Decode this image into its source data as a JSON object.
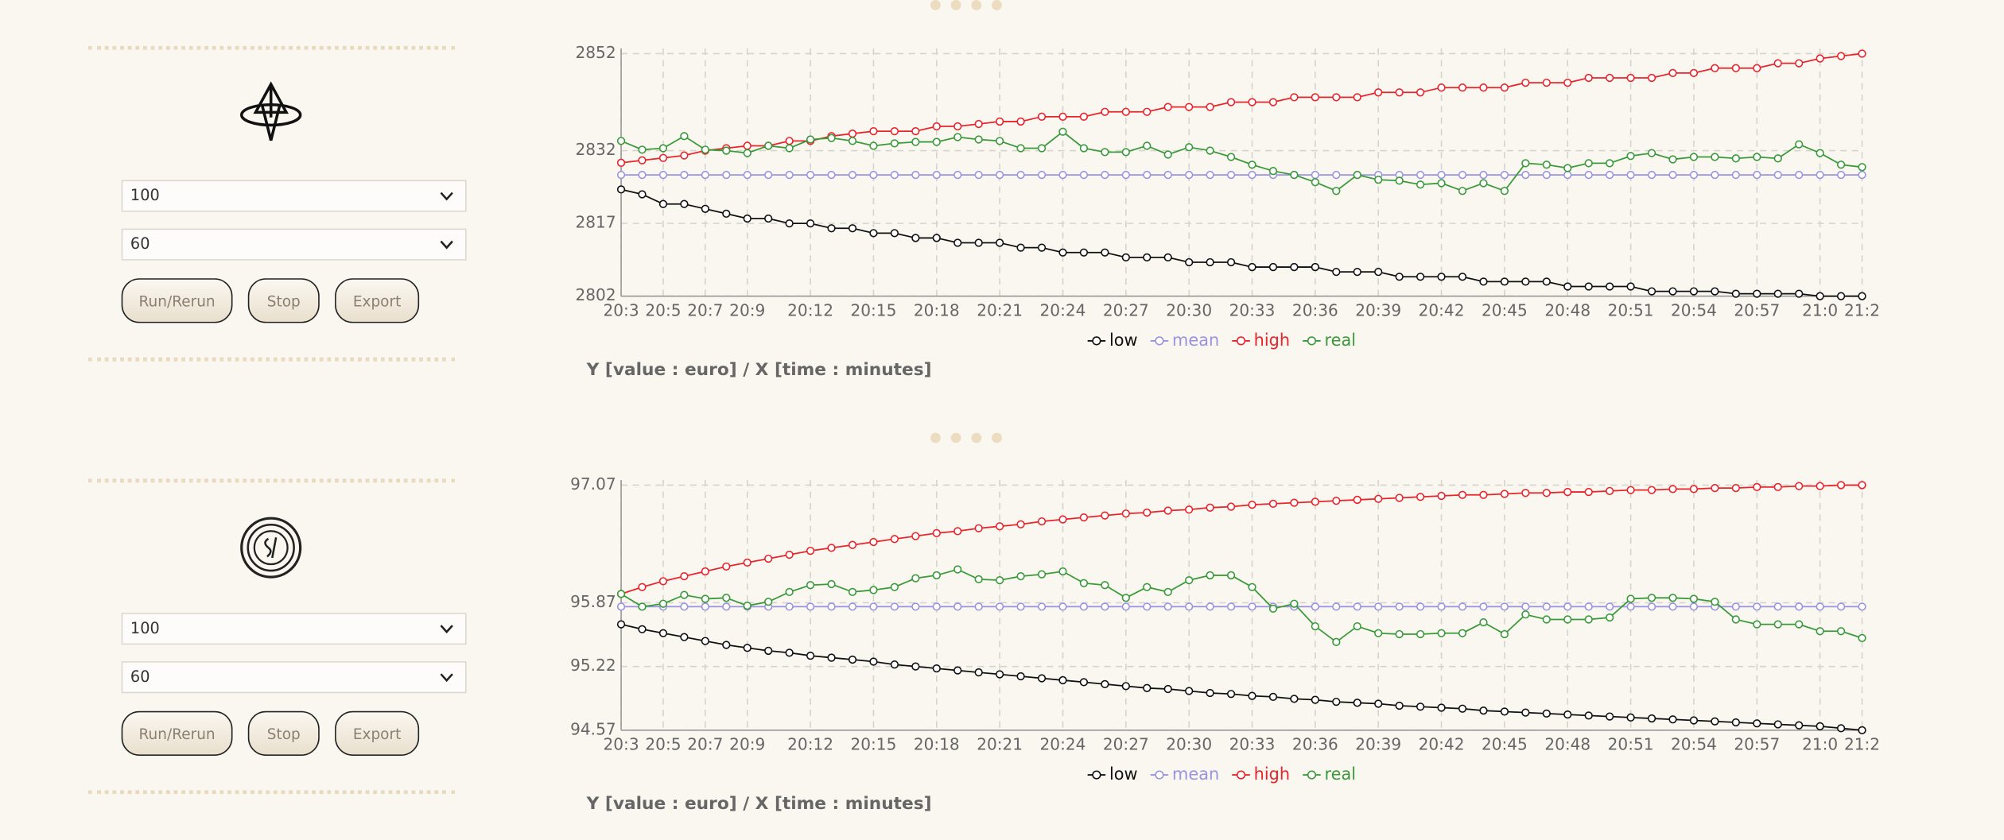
{
  "panels": [
    {
      "controls": {
        "select_1": "100",
        "select_2": "60",
        "buttons": [
          "Run/Rerun",
          "Stop",
          "Export"
        ]
      }
    },
    {
      "controls": {
        "select_1": "100",
        "select_2": "60",
        "buttons": [
          "Run/Rerun",
          "Stop",
          "Export"
        ]
      }
    }
  ],
  "chart_data": [
    {
      "type": "line",
      "categories": [
        "20:3",
        null,
        "20:5",
        null,
        "20:7",
        null,
        "20:9",
        null,
        null,
        "20:12",
        null,
        null,
        "20:15",
        null,
        null,
        "20:18",
        null,
        null,
        "20:21",
        null,
        null,
        "20:24",
        null,
        null,
        "20:27",
        null,
        null,
        "20:30",
        null,
        null,
        "20:33",
        null,
        null,
        "20:36",
        null,
        null,
        "20:39",
        null,
        null,
        "20:42",
        null,
        null,
        "20:45",
        null,
        null,
        "20:48",
        null,
        null,
        "20:51",
        null,
        null,
        "20:54",
        null,
        null,
        "20:57",
        null,
        null,
        "21:0",
        null,
        "21:2"
      ],
      "series": [
        {
          "name": "low",
          "color": "#111111",
          "values": [
            2824,
            2823,
            2821,
            2821,
            2820,
            2819,
            2818,
            2818,
            2817,
            2817,
            2816,
            2816,
            2815,
            2815,
            2814,
            2814,
            2813,
            2813,
            2813,
            2812,
            2812,
            2811,
            2811,
            2811,
            2810,
            2810,
            2810,
            2809,
            2809,
            2809,
            2808,
            2808,
            2808,
            2808,
            2807,
            2807,
            2807,
            2806,
            2806,
            2806,
            2806,
            2805,
            2805,
            2805,
            2805,
            2804,
            2804,
            2804,
            2804,
            2803,
            2803,
            2803,
            2803,
            2802.5,
            2802.5,
            2802.5,
            2802.5,
            2802,
            2802,
            2802
          ]
        },
        {
          "name": "mean",
          "color": "#9a93e0",
          "values": [
            2827,
            2827,
            2827,
            2827,
            2827,
            2827,
            2827,
            2827,
            2827,
            2827,
            2827,
            2827,
            2827,
            2827,
            2827,
            2827,
            2827,
            2827,
            2827,
            2827,
            2827,
            2827,
            2827,
            2827,
            2827,
            2827,
            2827,
            2827,
            2827,
            2827,
            2827,
            2827,
            2827,
            2827,
            2827,
            2827,
            2827,
            2827,
            2827,
            2827,
            2827,
            2827,
            2827,
            2827,
            2827,
            2827,
            2827,
            2827,
            2827,
            2827,
            2827,
            2827,
            2827,
            2827,
            2827,
            2827,
            2827,
            2827,
            2827,
            2827
          ]
        },
        {
          "name": "high",
          "color": "#e8252b",
          "values": [
            2829.5,
            2830,
            2830.5,
            2831,
            2832,
            2832.5,
            2833,
            2833,
            2834,
            2834,
            2835,
            2835.5,
            2836,
            2836,
            2836,
            2837,
            2837,
            2837.5,
            2838,
            2838,
            2839,
            2839,
            2839,
            2840,
            2840,
            2840,
            2841,
            2841,
            2841,
            2842,
            2842,
            2842,
            2843,
            2843,
            2843,
            2843,
            2844,
            2844,
            2844,
            2845,
            2845,
            2845,
            2845,
            2846,
            2846,
            2846,
            2847,
            2847,
            2847,
            2847,
            2848,
            2848,
            2849,
            2849,
            2849,
            2850,
            2850,
            2851,
            2851.5,
            2852
          ]
        },
        {
          "name": "real",
          "color": "#3a9a3a",
          "values": [
            2834,
            2832.2,
            2832.5,
            2835,
            2832.2,
            2832,
            2831.5,
            2833,
            2832.5,
            2834.3,
            2834.6,
            2834,
            2833,
            2833.5,
            2833.8,
            2833.8,
            2834.8,
            2834.3,
            2834,
            2832.5,
            2832.5,
            2835.9,
            2832.5,
            2831.7,
            2831.7,
            2833,
            2831.2,
            2832.7,
            2832,
            2830.7,
            2829.1,
            2827.8,
            2827,
            2825.5,
            2823.7,
            2827,
            2826,
            2825.8,
            2825,
            2825.3,
            2823.7,
            2825.3,
            2823.7,
            2829.4,
            2829.1,
            2828.4,
            2829.4,
            2829.4,
            2830.9,
            2831.5,
            2830.2,
            2830.7,
            2830.7,
            2830.4,
            2830.7,
            2830.4,
            2833.3,
            2831.5,
            2829.1,
            2828.6
          ]
        }
      ],
      "ylim": [
        2802,
        2852
      ],
      "yticks": [
        2802,
        2817,
        2832,
        2852
      ],
      "grid": true,
      "legend": "bottom",
      "caption": "Y [value : euro] / X [time : minutes]"
    },
    {
      "type": "line",
      "categories": [
        "20:3",
        null,
        "20:5",
        null,
        "20:7",
        null,
        "20:9",
        null,
        null,
        "20:12",
        null,
        null,
        "20:15",
        null,
        null,
        "20:18",
        null,
        null,
        "20:21",
        null,
        null,
        "20:24",
        null,
        null,
        "20:27",
        null,
        null,
        "20:30",
        null,
        null,
        "20:33",
        null,
        null,
        "20:36",
        null,
        null,
        "20:39",
        null,
        null,
        "20:42",
        null,
        null,
        "20:45",
        null,
        null,
        "20:48",
        null,
        null,
        "20:51",
        null,
        null,
        "20:54",
        null,
        null,
        "20:57",
        null,
        null,
        "21:0",
        null,
        "21:2"
      ],
      "series": [
        {
          "name": "low",
          "color": "#111111",
          "values": [
            95.65,
            95.6,
            95.56,
            95.52,
            95.48,
            95.44,
            95.41,
            95.38,
            95.36,
            95.33,
            95.31,
            95.29,
            95.27,
            95.24,
            95.22,
            95.2,
            95.18,
            95.16,
            95.14,
            95.12,
            95.1,
            95.08,
            95.06,
            95.04,
            95.02,
            95.0,
            94.99,
            94.97,
            94.95,
            94.94,
            94.92,
            94.91,
            94.89,
            94.88,
            94.86,
            94.85,
            94.84,
            94.82,
            94.81,
            94.8,
            94.79,
            94.77,
            94.76,
            94.75,
            94.74,
            94.73,
            94.72,
            94.71,
            94.7,
            94.69,
            94.68,
            94.67,
            94.66,
            94.65,
            94.64,
            94.63,
            94.62,
            94.61,
            94.59,
            94.57
          ]
        },
        {
          "name": "mean",
          "color": "#9a93e0",
          "values": [
            95.83,
            95.83,
            95.83,
            95.83,
            95.83,
            95.83,
            95.83,
            95.83,
            95.83,
            95.83,
            95.83,
            95.83,
            95.83,
            95.83,
            95.83,
            95.83,
            95.83,
            95.83,
            95.83,
            95.83,
            95.83,
            95.83,
            95.83,
            95.83,
            95.83,
            95.83,
            95.83,
            95.83,
            95.83,
            95.83,
            95.83,
            95.83,
            95.83,
            95.83,
            95.83,
            95.83,
            95.83,
            95.83,
            95.83,
            95.83,
            95.83,
            95.83,
            95.83,
            95.83,
            95.83,
            95.83,
            95.83,
            95.83,
            95.83,
            95.83,
            95.83,
            95.83,
            95.83,
            95.83,
            95.83,
            95.83,
            95.83,
            95.83,
            95.83,
            95.83
          ]
        },
        {
          "name": "high",
          "color": "#e8252b",
          "values": [
            95.96,
            96.03,
            96.09,
            96.14,
            96.19,
            96.24,
            96.28,
            96.32,
            96.36,
            96.4,
            96.43,
            96.46,
            96.49,
            96.52,
            96.55,
            96.58,
            96.6,
            96.63,
            96.65,
            96.67,
            96.7,
            96.72,
            96.74,
            96.76,
            96.78,
            96.79,
            96.81,
            96.82,
            96.84,
            96.85,
            96.87,
            96.88,
            96.89,
            96.9,
            96.91,
            96.92,
            96.93,
            96.94,
            96.95,
            96.96,
            96.97,
            96.97,
            96.98,
            96.99,
            96.99,
            97.0,
            97.0,
            97.01,
            97.02,
            97.02,
            97.03,
            97.03,
            97.04,
            97.04,
            97.05,
            97.05,
            97.06,
            97.06,
            97.07,
            97.07
          ]
        },
        {
          "name": "real",
          "color": "#3a9a3a",
          "values": [
            95.96,
            95.83,
            95.86,
            95.95,
            95.91,
            95.92,
            95.84,
            95.88,
            95.98,
            96.05,
            96.06,
            95.98,
            96.0,
            96.03,
            96.12,
            96.15,
            96.21,
            96.11,
            96.1,
            96.14,
            96.16,
            96.19,
            96.07,
            96.05,
            95.92,
            96.03,
            95.98,
            96.1,
            96.15,
            96.15,
            96.03,
            95.81,
            95.86,
            95.63,
            95.47,
            95.63,
            95.56,
            95.55,
            95.55,
            95.56,
            95.56,
            95.67,
            95.55,
            95.75,
            95.7,
            95.7,
            95.7,
            95.72,
            95.91,
            95.92,
            95.92,
            95.91,
            95.88,
            95.7,
            95.65,
            95.65,
            95.65,
            95.58,
            95.58,
            95.51
          ]
        }
      ],
      "ylim": [
        94.57,
        97.07
      ],
      "yticks": [
        94.57,
        95.22,
        95.87,
        97.07
      ],
      "grid": true,
      "legend": "bottom",
      "caption": "Y [value : euro] / X [time : minutes]"
    }
  ]
}
